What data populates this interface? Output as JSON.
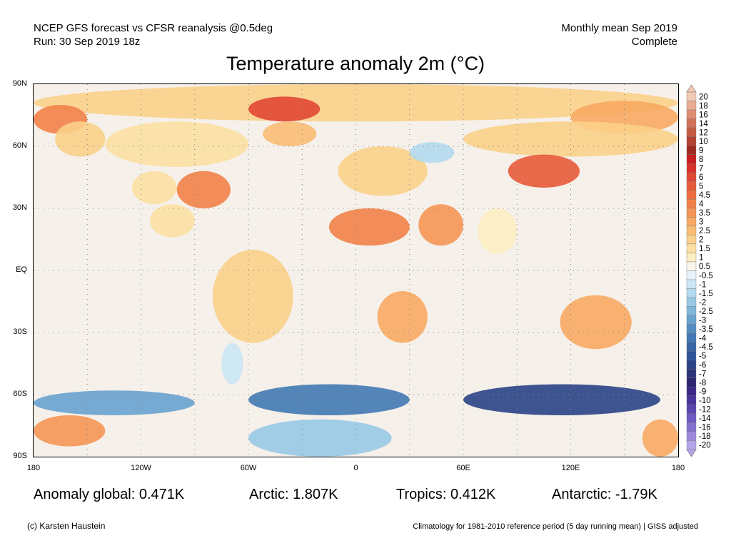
{
  "header": {
    "line1_left": "NCEP GFS forecast vs CFSR reanalysis @0.5deg",
    "line2_left": "Run: 30 Sep 2019 18z",
    "line1_right": "Monthly mean Sep 2019",
    "line2_right": "Complete"
  },
  "title": "Temperature anomaly 2m (°C)",
  "lat_labels": [
    "90N",
    "60N",
    "30N",
    "EQ",
    "30S",
    "60S",
    "90S"
  ],
  "lon_labels": [
    "180",
    "120W",
    "60W",
    "0",
    "60E",
    "120E",
    "180"
  ],
  "colorbar": {
    "levels": [
      "20",
      "18",
      "16",
      "14",
      "12",
      "10",
      "9",
      "8",
      "7",
      "6",
      "5",
      "4.5",
      "4",
      "3.5",
      "3",
      "2.5",
      "2",
      "1.5",
      "1",
      "0.5",
      "-0.5",
      "-1",
      "-1.5",
      "-2",
      "-2.5",
      "-3",
      "-3.5",
      "-4",
      "-4.5",
      "-5",
      "-6",
      "-7",
      "-8",
      "-9",
      "-10",
      "-12",
      "-14",
      "-16",
      "-18",
      "-20"
    ],
    "colors": [
      "#f2c9b5",
      "#e9ab93",
      "#df8e72",
      "#d27256",
      "#c45a42",
      "#b34232",
      "#a02a22",
      "#c81e1e",
      "#d8302a",
      "#e14735",
      "#e85b38",
      "#ee6e3f",
      "#f2824a",
      "#f59656",
      "#f8aa63",
      "#f9bd74",
      "#fbd08a",
      "#fce0a3",
      "#fdedc2",
      "#fbf7ea",
      "#e6f2fa",
      "#cce6f5",
      "#b3daf0",
      "#98c9e6",
      "#7fb6db",
      "#68a2cf",
      "#548dc2",
      "#4379b4",
      "#3766a6",
      "#2d5497",
      "#2a4387",
      "#2b3378",
      "#2c2570",
      "#3a2786",
      "#4a339c",
      "#5c45b0",
      "#7059c2",
      "#8670d0",
      "#9d89dc",
      "#b6a4e8"
    ]
  },
  "stats": {
    "global": "Anomaly global: 0.471K",
    "arctic": "Arctic: 1.807K",
    "tropics": "Tropics: 0.412K",
    "antarctic": "Antarctic: -1.79K"
  },
  "footer": {
    "left": "(c) Karsten Haustein",
    "right": "Climatology for 1981-2010 reference period (5 day running mean) | GISS adjusted"
  },
  "map": {
    "projection": "equirectangular",
    "lon_range": [
      -180,
      180
    ],
    "lat_range": [
      -90,
      90
    ],
    "ocean_color": "#f6f0ea",
    "grid_dotted": true,
    "anomaly_regions": [
      {
        "name": "arctic-ocean",
        "lat": [
          72,
          90
        ],
        "lon": [
          -180,
          180
        ],
        "level": "2"
      },
      {
        "name": "east-siberian-sea",
        "lat": [
          66,
          82
        ],
        "lon": [
          120,
          180
        ],
        "level": "3"
      },
      {
        "name": "chukchi-sea",
        "lat": [
          66,
          80
        ],
        "lon": [
          -180,
          -150
        ],
        "level": "4"
      },
      {
        "name": "greenland-north",
        "lat": [
          72,
          84
        ],
        "lon": [
          -60,
          -20
        ],
        "level": "6"
      },
      {
        "name": "greenland-south",
        "lat": [
          60,
          72
        ],
        "lon": [
          -52,
          -22
        ],
        "level": "2.5"
      },
      {
        "name": "alaska",
        "lat": [
          55,
          72
        ],
        "lon": [
          -168,
          -140
        ],
        "level": "2"
      },
      {
        "name": "canada",
        "lat": [
          50,
          72
        ],
        "lon": [
          -140,
          -60
        ],
        "level": "1.5"
      },
      {
        "name": "usa-east",
        "lat": [
          30,
          48
        ],
        "lon": [
          -100,
          -70
        ],
        "level": "4"
      },
      {
        "name": "usa-west",
        "lat": [
          32,
          48
        ],
        "lon": [
          -125,
          -100
        ],
        "level": "1.5"
      },
      {
        "name": "mexico",
        "lat": [
          16,
          32
        ],
        "lon": [
          -115,
          -90
        ],
        "level": "1.5"
      },
      {
        "name": "south-america",
        "lat": [
          -35,
          10
        ],
        "lon": [
          -80,
          -35
        ],
        "level": "2"
      },
      {
        "name": "patagonia",
        "lat": [
          -55,
          -35
        ],
        "lon": [
          -75,
          -63
        ],
        "level": "-1"
      },
      {
        "name": "sahara",
        "lat": [
          12,
          30
        ],
        "lon": [
          -15,
          30
        ],
        "level": "4"
      },
      {
        "name": "arabia",
        "lat": [
          12,
          32
        ],
        "lon": [
          35,
          60
        ],
        "level": "3.5"
      },
      {
        "name": "europe",
        "lat": [
          36,
          60
        ],
        "lon": [
          -10,
          40
        ],
        "level": "2"
      },
      {
        "name": "russia-west",
        "lat": [
          52,
          62
        ],
        "lon": [
          30,
          55
        ],
        "level": "-1.5"
      },
      {
        "name": "siberia",
        "lat": [
          55,
          72
        ],
        "lon": [
          60,
          180
        ],
        "level": "2"
      },
      {
        "name": "mongolia",
        "lat": [
          40,
          56
        ],
        "lon": [
          85,
          125
        ],
        "level": "5"
      },
      {
        "name": "india",
        "lat": [
          8,
          30
        ],
        "lon": [
          68,
          90
        ],
        "level": "1"
      },
      {
        "name": "southern-africa",
        "lat": [
          -35,
          -10
        ],
        "lon": [
          12,
          40
        ],
        "level": "3"
      },
      {
        "name": "australia",
        "lat": [
          -38,
          -12
        ],
        "lon": [
          114,
          154
        ],
        "level": "3"
      },
      {
        "name": "southern-ocean-atlantic",
        "lat": [
          -70,
          -55
        ],
        "lon": [
          -60,
          30
        ],
        "level": "-4"
      },
      {
        "name": "southern-ocean-indian",
        "lat": [
          -70,
          -55
        ],
        "lon": [
          60,
          170
        ],
        "level": "-6"
      },
      {
        "name": "southern-ocean-pacific",
        "lat": [
          -70,
          -58
        ],
        "lon": [
          -180,
          -90
        ],
        "level": "-3"
      },
      {
        "name": "antarctica-east",
        "lat": [
          -85,
          -70
        ],
        "lon": [
          -180,
          -140
        ],
        "level": "3.5"
      },
      {
        "name": "antarctica-west",
        "lat": [
          -90,
          -72
        ],
        "lon": [
          -60,
          20
        ],
        "level": "-2"
      },
      {
        "name": "antarctica-ross",
        "lat": [
          -90,
          -72
        ],
        "lon": [
          160,
          180
        ],
        "level": "3"
      }
    ]
  }
}
